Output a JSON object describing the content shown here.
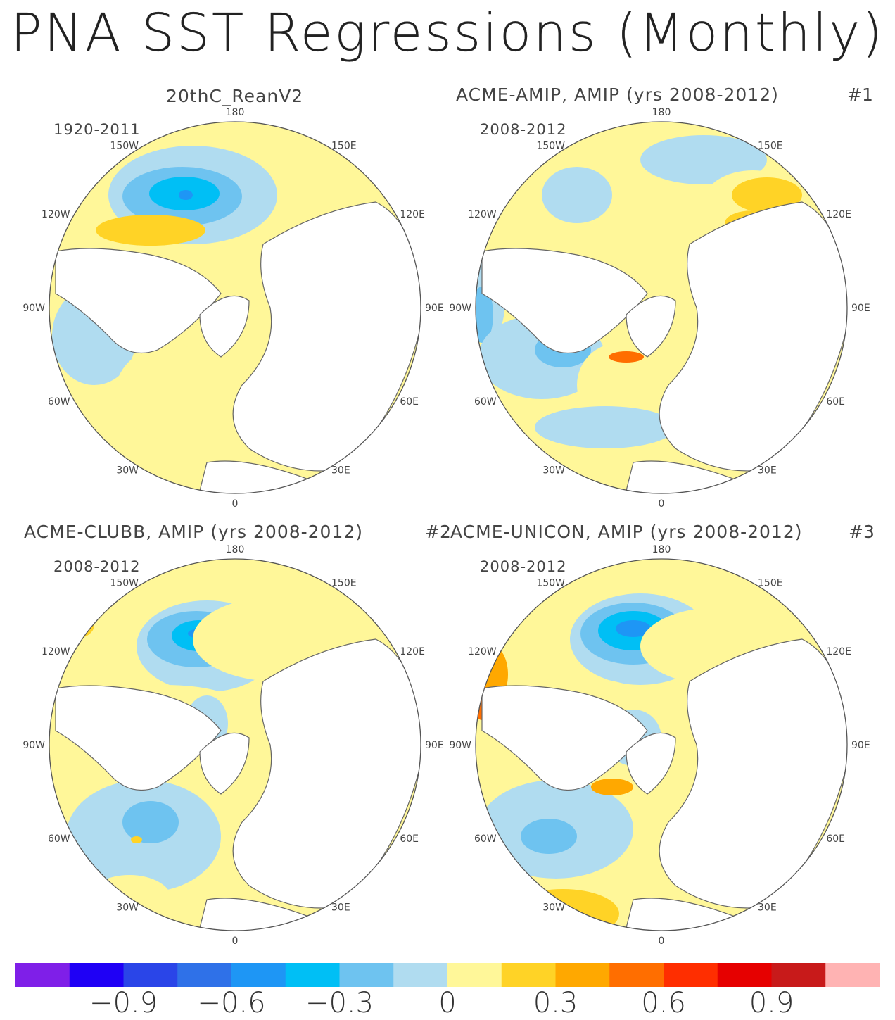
{
  "title": "PNA SST Regressions (Monthly)",
  "panels": [
    {
      "title": "20thC_ReanV2",
      "tag": "",
      "period": "1920-2011"
    },
    {
      "title": "ACME-AMIP, AMIP (yrs 2008-2012)",
      "tag": "#1",
      "period": "2008-2012"
    },
    {
      "title": "ACME-CLUBB, AMIP (yrs 2008-2012)",
      "tag": "#2",
      "period": "2008-2012"
    },
    {
      "title": "ACME-UNICON, AMIP (yrs 2008-2012)",
      "tag": "#3",
      "period": "2008-2012"
    }
  ],
  "longitude_labels": [
    "180",
    "150E",
    "120E",
    "90E",
    "60E",
    "30E",
    "0",
    "30W",
    "60W",
    "90W",
    "120W",
    "150W"
  ],
  "chart_data": {
    "type": "heatmap",
    "projection": "north polar stereographic",
    "colorbar": {
      "boundaries": [
        -1.05,
        -0.9,
        -0.75,
        -0.6,
        -0.45,
        -0.3,
        -0.15,
        0,
        0.15,
        0.3,
        0.45,
        0.6,
        0.75,
        0.9,
        1.05
      ],
      "tick_labels": [
        "-0.9",
        "-0.6",
        "-0.3",
        "0",
        "0.3",
        "0.6",
        "0.9"
      ],
      "tick_values": [
        -0.9,
        -0.6,
        -0.3,
        0,
        0.3,
        0.6,
        0.9
      ],
      "colors": [
        "#7f1fe8",
        "#1f00f5",
        "#2a45e8",
        "#2f71e8",
        "#1e96f5",
        "#00bff5",
        "#6ec3f0",
        "#b0dcf0",
        "#fff799",
        "#ffd326",
        "#ffa800",
        "#ff6e00",
        "#ff2e00",
        "#e60000",
        "#c81a1a",
        "#ffb3b3"
      ]
    }
  }
}
